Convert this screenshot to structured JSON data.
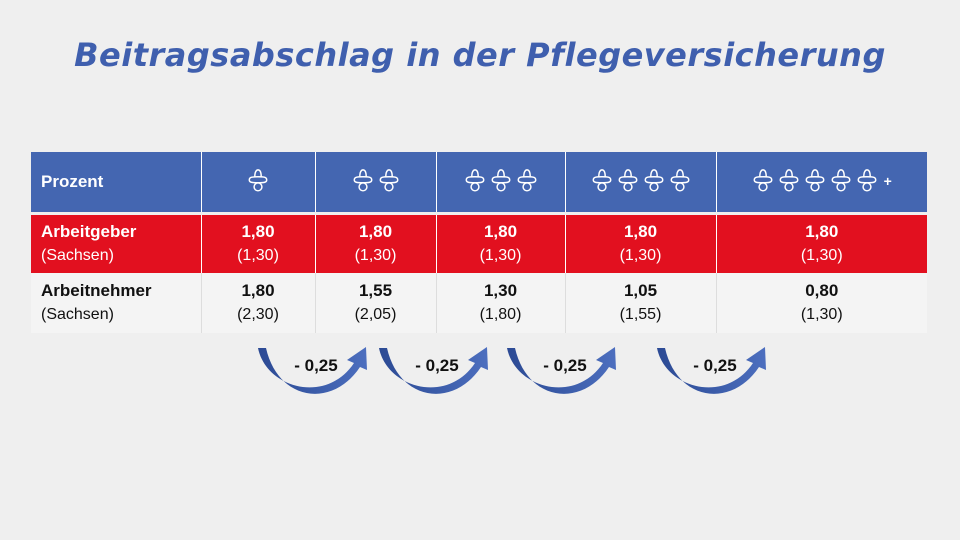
{
  "title": "Beitragsabschlag in der Pflegeversicherung",
  "table": {
    "header": {
      "label": "Prozent",
      "columns": [
        {
          "icon": "pacifier-icon",
          "count": 1,
          "plus": ""
        },
        {
          "icon": "pacifier-icon",
          "count": 2,
          "plus": ""
        },
        {
          "icon": "pacifier-icon",
          "count": 3,
          "plus": ""
        },
        {
          "icon": "pacifier-icon",
          "count": 4,
          "plus": ""
        },
        {
          "icon": "pacifier-icon",
          "count": 5,
          "plus": "+"
        }
      ]
    },
    "rows": [
      {
        "label": "Arbeitgeber",
        "sublabel": "(Sachsen)",
        "values": [
          "1,80",
          "1,80",
          "1,80",
          "1,80",
          "1,80"
        ],
        "sachsen": [
          "(1,30)",
          "(1,30)",
          "(1,30)",
          "(1,30)",
          "(1,30)"
        ]
      },
      {
        "label": "Arbeitnehmer",
        "sublabel": "(Sachsen)",
        "values": [
          "1,80",
          "1,55",
          "1,30",
          "1,05",
          "0,80"
        ],
        "sachsen": [
          "(2,30)",
          "(2,05)",
          "(1,80)",
          "(1,55)",
          "(1,30)"
        ]
      }
    ]
  },
  "arrows": [
    {
      "label": "- 0,25"
    },
    {
      "label": "- 0,25"
    },
    {
      "label": "- 0,25"
    },
    {
      "label": "- 0,25"
    }
  ],
  "colors": {
    "title": "#3f5fae",
    "header_bg": "#4466b1",
    "employer_bg": "#e2101f",
    "employee_bg": "#f4f4f4",
    "arrow": "#3a5ba8"
  }
}
